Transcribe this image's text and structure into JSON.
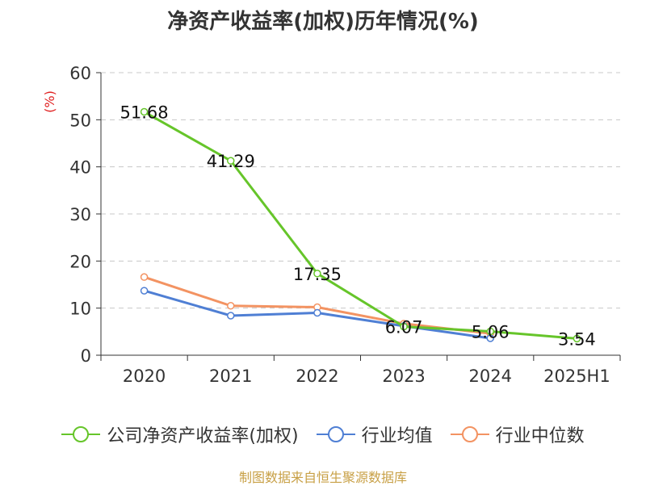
{
  "chart_data": {
    "type": "line",
    "title": "净资产收益率(加权)历年情况(%)",
    "ylabel": "(%)",
    "xlabel": "",
    "categories": [
      "2020",
      "2021",
      "2022",
      "2023",
      "2024",
      "2025H1"
    ],
    "ylim": [
      0,
      60
    ],
    "yticks": [
      0,
      10,
      20,
      30,
      40,
      50,
      60
    ],
    "grid": true,
    "legend_position": "bottom",
    "series": [
      {
        "name": "公司净资产收益率(加权)",
        "color": "#66c52a",
        "values": [
          51.68,
          41.29,
          17.35,
          6.07,
          5.06,
          3.54
        ],
        "labels": [
          "51.68",
          "41.29",
          "17.35",
          "6.07",
          "5.06",
          "3.54"
        ]
      },
      {
        "name": "行业均值",
        "color": "#4f7fd4",
        "values": [
          13.7,
          8.4,
          9.0,
          6.2,
          3.6,
          null
        ]
      },
      {
        "name": "行业中位数",
        "color": "#f39362",
        "values": [
          16.6,
          10.5,
          10.2,
          6.7,
          4.6,
          null
        ]
      }
    ]
  },
  "source": "制图数据来自恒生聚源数据库"
}
